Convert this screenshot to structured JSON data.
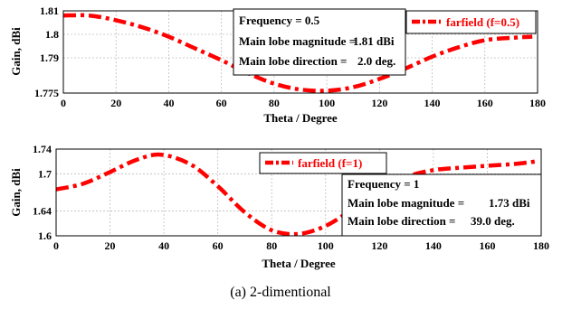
{
  "caption": "(a) 2-dimentional",
  "chart_data": [
    {
      "type": "line",
      "title": "",
      "xlabel": "Theta / Degree",
      "ylabel": "Gain, dBi",
      "xlim": [
        0,
        180
      ],
      "ylim": [
        1.775,
        1.81
      ],
      "x_ticks": [
        0,
        20,
        40,
        60,
        80,
        100,
        120,
        140,
        160,
        180
      ],
      "y_ticks": [
        1.775,
        1.79,
        1.8,
        1.81
      ],
      "y_tick_labels": [
        "1.775",
        "1.79",
        "1.8",
        "1.81"
      ],
      "grid": true,
      "series": [
        {
          "name": "farfield (f=0.5)",
          "color": "#ff0000",
          "x": [
            0,
            10,
            20,
            30,
            40,
            50,
            60,
            70,
            80,
            90,
            100,
            110,
            120,
            130,
            140,
            150,
            160,
            170,
            178
          ],
          "values": [
            1.808,
            1.808,
            1.806,
            1.803,
            1.799,
            1.794,
            1.789,
            1.7835,
            1.779,
            1.7765,
            1.776,
            1.7775,
            1.781,
            1.7855,
            1.7905,
            1.7945,
            1.7975,
            1.7985,
            1.799
          ]
        }
      ],
      "legend_position": "top-right",
      "info": [
        {
          "label": "Frequency = 0.5",
          "value": ""
        },
        {
          "label": "Main lobe magnitude =",
          "value": "1.81 dBi"
        },
        {
          "label": "Main lobe direction =",
          "value": "2.0 deg."
        }
      ]
    },
    {
      "type": "line",
      "title": "",
      "xlabel": "Theta / Degree",
      "ylabel": "Gain, dBi",
      "xlim": [
        0,
        180
      ],
      "ylim": [
        1.6,
        1.74
      ],
      "x_ticks": [
        0,
        20,
        40,
        60,
        80,
        100,
        120,
        140,
        160,
        180
      ],
      "y_ticks": [
        1.6,
        1.64,
        1.7,
        1.74
      ],
      "y_tick_labels": [
        "1.6",
        "1.64",
        "1.7",
        "1.74"
      ],
      "grid": true,
      "series": [
        {
          "name": "farfield (f=1)",
          "color": "#ff0000",
          "x": [
            0,
            10,
            20,
            30,
            39,
            50,
            60,
            70,
            80,
            90,
            100,
            110,
            120,
            130,
            140,
            150,
            160,
            170,
            178
          ],
          "values": [
            1.675,
            1.684,
            1.703,
            1.723,
            1.731,
            1.715,
            1.68,
            1.638,
            1.609,
            1.603,
            1.616,
            1.643,
            1.672,
            1.695,
            1.706,
            1.71,
            1.713,
            1.716,
            1.72
          ]
        }
      ],
      "legend_position": "top-center",
      "info": [
        {
          "label": "Frequency = 1",
          "value": ""
        },
        {
          "label": "Main lobe magnitude =",
          "value": "1.73 dBi"
        },
        {
          "label": "Main lobe direction =",
          "value": "39.0 deg."
        }
      ]
    }
  ]
}
